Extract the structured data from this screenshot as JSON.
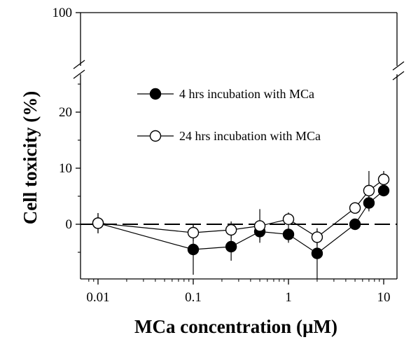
{
  "chart_data": {
    "type": "scatter",
    "xlabel": "MCa concentration (µM)",
    "ylabel": "Cell toxicity (%)",
    "x_scale": "log",
    "xlim": [
      0.008,
      12
    ],
    "x_ticks": [
      {
        "value": 0.01,
        "label": "0.01"
      },
      {
        "value": 0.1,
        "label": "0.1"
      },
      {
        "value": 1,
        "label": "1"
      },
      {
        "value": 10,
        "label": "10"
      }
    ],
    "y_axis_break": true,
    "ylim_lower": [
      -9,
      27
    ],
    "ylim_upper_tick": 100,
    "y_ticks": [
      {
        "value": 0,
        "label": "0"
      },
      {
        "value": 10,
        "label": "10"
      },
      {
        "value": 20,
        "label": "20"
      },
      {
        "value": 100,
        "label": "100"
      }
    ],
    "reference_line": {
      "y": 0,
      "style": "dashed"
    },
    "grid": false,
    "legend_position": "upper-center",
    "series": [
      {
        "name": "4 hrs incubation with MCa",
        "marker": "filled-circle",
        "color": "#000000",
        "points": [
          {
            "x": 0.01,
            "y": 0.2,
            "err": 1.8
          },
          {
            "x": 0.1,
            "y": -4.5,
            "err": 4.5
          },
          {
            "x": 0.25,
            "y": -4.0,
            "err": 2.5
          },
          {
            "x": 0.5,
            "y": -1.3,
            "err": 1.5
          },
          {
            "x": 1,
            "y": -1.8,
            "err": 1.5
          },
          {
            "x": 2,
            "y": -5.2,
            "err": 4.5
          },
          {
            "x": 5,
            "y": 0.0,
            "err": 1.0
          },
          {
            "x": 7,
            "y": 3.8,
            "err": 1.5
          },
          {
            "x": 10,
            "y": 6.0,
            "err": 1.0
          }
        ]
      },
      {
        "name": "24 hrs incubation with MCa",
        "marker": "open-circle",
        "color": "#000000",
        "points": [
          {
            "x": 0.01,
            "y": 0.2,
            "err": 1.8
          },
          {
            "x": 0.1,
            "y": -1.5,
            "err": 1.5
          },
          {
            "x": 0.25,
            "y": -1.0,
            "err": 1.5
          },
          {
            "x": 0.5,
            "y": -0.3,
            "err": 3.0
          },
          {
            "x": 1,
            "y": 0.9,
            "err": 1.2
          },
          {
            "x": 2,
            "y": -2.3,
            "err": 1.5
          },
          {
            "x": 5,
            "y": 2.9,
            "err": 1.0
          },
          {
            "x": 7,
            "y": 6.0,
            "err": 3.5
          },
          {
            "x": 10,
            "y": 8.0,
            "err": 1.5
          }
        ]
      }
    ]
  }
}
